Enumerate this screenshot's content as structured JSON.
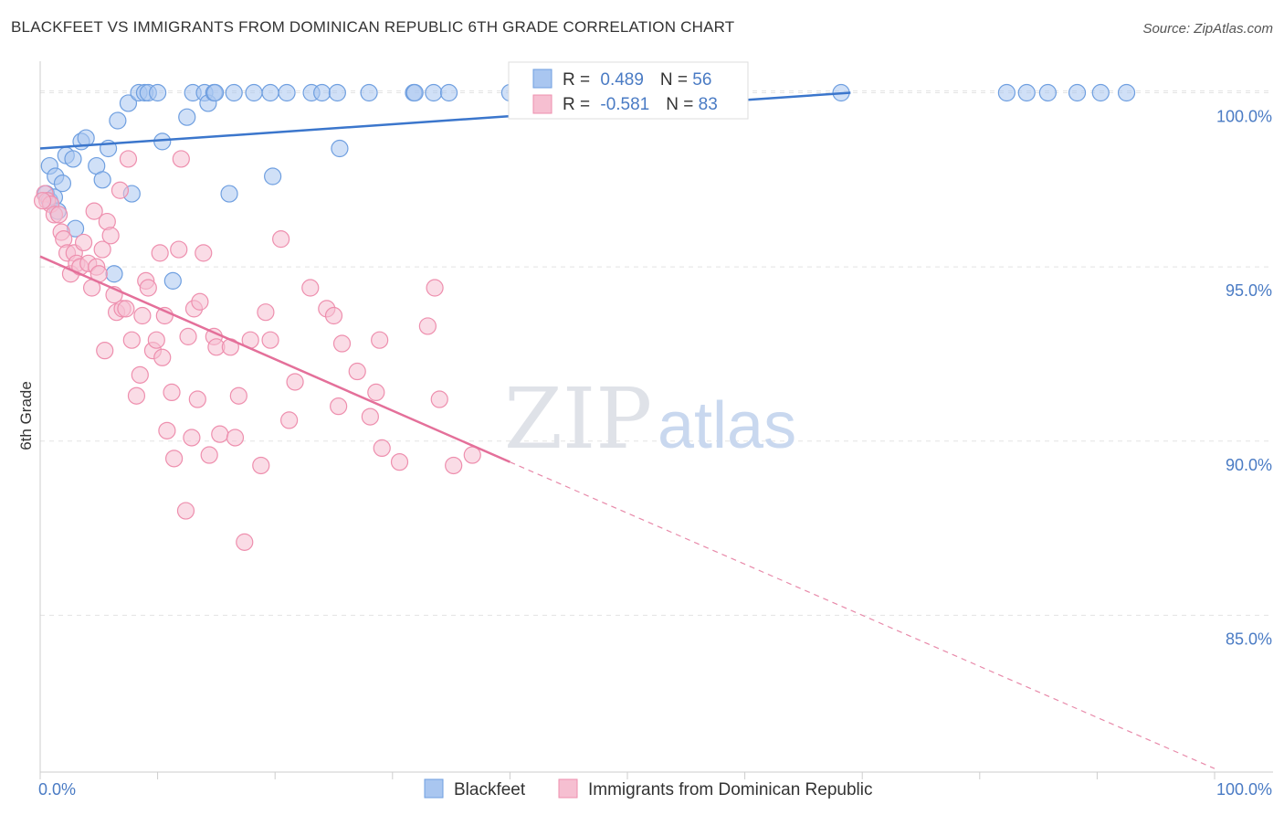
{
  "header": {
    "title": "BLACKFEET VS IMMIGRANTS FROM DOMINICAN REPUBLIC 6TH GRADE CORRELATION CHART",
    "source": "Source: ZipAtlas.com"
  },
  "watermark": {
    "zip": "ZIP",
    "atlas": "atlas"
  },
  "chart_data": {
    "type": "scatter",
    "title": "BLACKFEET VS IMMIGRANTS FROM DOMINICAN REPUBLIC 6TH GRADE CORRELATION CHART",
    "xlabel": "",
    "ylabel": "6th Grade",
    "xlim": [
      0,
      100
    ],
    "ylim": [
      80.5,
      100.8
    ],
    "x_tick_labels": [
      "0.0%",
      "100.0%"
    ],
    "y_ticks": [
      100,
      95,
      90,
      85
    ],
    "y_tick_labels": [
      "100.0%",
      "95.0%",
      "90.0%",
      "85.0%"
    ],
    "grid": true,
    "legend_position": "bottom",
    "stats": [
      {
        "r_label": "R = ",
        "r_value": "0.489",
        "n_label": "N = ",
        "n_value": "56"
      },
      {
        "r_label": "R = ",
        "r_value": "-0.581",
        "n_label": "N = ",
        "n_value": "83"
      }
    ],
    "series": [
      {
        "name": "Blackfeet",
        "color": "#6f9fe0",
        "fill": "#a9c6f0",
        "trend": {
          "x": [
            0,
            69
          ],
          "y": [
            98.4,
            100.0
          ],
          "style": "solid"
        },
        "points": [
          [
            0.5,
            97.1
          ],
          [
            0.8,
            96.9
          ],
          [
            0.8,
            97.9
          ],
          [
            1.2,
            97.0
          ],
          [
            1.3,
            97.6
          ],
          [
            1.5,
            96.6
          ],
          [
            1.9,
            97.4
          ],
          [
            2.2,
            98.2
          ],
          [
            2.8,
            98.1
          ],
          [
            3.0,
            96.1
          ],
          [
            3.5,
            98.6
          ],
          [
            3.9,
            98.7
          ],
          [
            4.8,
            97.9
          ],
          [
            5.3,
            97.5
          ],
          [
            5.8,
            98.4
          ],
          [
            6.3,
            94.8
          ],
          [
            6.6,
            99.2
          ],
          [
            7.5,
            99.7
          ],
          [
            7.8,
            97.1
          ],
          [
            8.4,
            100.0
          ],
          [
            8.9,
            100.0
          ],
          [
            9.2,
            100.0
          ],
          [
            10.0,
            100.0
          ],
          [
            10.4,
            98.6
          ],
          [
            11.3,
            94.6
          ],
          [
            12.5,
            99.3
          ],
          [
            13.0,
            100.0
          ],
          [
            14.0,
            100.0
          ],
          [
            14.3,
            99.7
          ],
          [
            14.8,
            100.0
          ],
          [
            14.9,
            100.0
          ],
          [
            16.1,
            97.1
          ],
          [
            16.5,
            100.0
          ],
          [
            18.2,
            100.0
          ],
          [
            19.6,
            100.0
          ],
          [
            19.8,
            97.6
          ],
          [
            21.0,
            100.0
          ],
          [
            23.1,
            100.0
          ],
          [
            24.0,
            100.0
          ],
          [
            25.3,
            100.0
          ],
          [
            25.5,
            98.4
          ],
          [
            28.0,
            100.0
          ],
          [
            31.8,
            100.0
          ],
          [
            31.9,
            100.0
          ],
          [
            33.5,
            100.0
          ],
          [
            34.8,
            100.0
          ],
          [
            40.0,
            100.0
          ],
          [
            44.0,
            100.0
          ],
          [
            45.9,
            100.0
          ],
          [
            68.2,
            100.0
          ],
          [
            82.3,
            100.0
          ],
          [
            84.0,
            100.0
          ],
          [
            85.8,
            100.0
          ],
          [
            88.3,
            100.0
          ],
          [
            90.3,
            100.0
          ],
          [
            92.5,
            100.0
          ]
        ]
      },
      {
        "name": "Immigrants from Dominican Republic",
        "color": "#ee8fae",
        "fill": "#f6bfd1",
        "trend": {
          "x": [
            0,
            40
          ],
          "y": [
            95.3,
            89.4
          ],
          "style": "solid"
        },
        "trend_extension": {
          "x": [
            40,
            100
          ],
          "y": [
            89.4,
            80.6
          ],
          "style": "dashed"
        },
        "points": [
          [
            0.4,
            97.1
          ],
          [
            0.6,
            96.9
          ],
          [
            0.9,
            96.8
          ],
          [
            1.2,
            96.5
          ],
          [
            1.6,
            96.5
          ],
          [
            1.8,
            96.0
          ],
          [
            2.0,
            95.8
          ],
          [
            2.3,
            95.4
          ],
          [
            2.6,
            94.8
          ],
          [
            2.9,
            95.4
          ],
          [
            3.1,
            95.1
          ],
          [
            3.4,
            95.0
          ],
          [
            3.7,
            95.7
          ],
          [
            4.1,
            95.1
          ],
          [
            4.4,
            94.4
          ],
          [
            4.6,
            96.6
          ],
          [
            4.8,
            95.0
          ],
          [
            5.0,
            94.8
          ],
          [
            5.3,
            95.5
          ],
          [
            5.5,
            92.6
          ],
          [
            5.7,
            96.3
          ],
          [
            6.0,
            95.9
          ],
          [
            6.3,
            94.2
          ],
          [
            6.5,
            93.7
          ],
          [
            6.8,
            97.2
          ],
          [
            7.0,
            93.8
          ],
          [
            7.3,
            93.8
          ],
          [
            7.5,
            98.1
          ],
          [
            7.8,
            92.9
          ],
          [
            8.2,
            91.3
          ],
          [
            8.5,
            91.9
          ],
          [
            8.7,
            93.6
          ],
          [
            9.0,
            94.6
          ],
          [
            9.2,
            94.4
          ],
          [
            9.6,
            92.6
          ],
          [
            9.9,
            92.9
          ],
          [
            10.2,
            95.4
          ],
          [
            10.4,
            92.4
          ],
          [
            10.6,
            93.6
          ],
          [
            10.8,
            90.3
          ],
          [
            11.2,
            91.4
          ],
          [
            11.4,
            89.5
          ],
          [
            11.8,
            95.5
          ],
          [
            12.0,
            98.1
          ],
          [
            12.4,
            88.0
          ],
          [
            12.6,
            93.0
          ],
          [
            12.9,
            90.1
          ],
          [
            13.1,
            93.8
          ],
          [
            13.4,
            91.2
          ],
          [
            13.6,
            94.0
          ],
          [
            13.9,
            95.4
          ],
          [
            14.4,
            89.6
          ],
          [
            14.8,
            93.0
          ],
          [
            15.0,
            92.7
          ],
          [
            15.3,
            90.2
          ],
          [
            16.2,
            92.7
          ],
          [
            16.6,
            90.1
          ],
          [
            16.9,
            91.3
          ],
          [
            17.4,
            87.1
          ],
          [
            17.9,
            92.9
          ],
          [
            18.8,
            89.3
          ],
          [
            19.2,
            93.7
          ],
          [
            19.6,
            92.9
          ],
          [
            20.5,
            95.8
          ],
          [
            21.2,
            90.6
          ],
          [
            21.7,
            91.7
          ],
          [
            23.0,
            94.4
          ],
          [
            24.4,
            93.8
          ],
          [
            25.0,
            93.6
          ],
          [
            25.4,
            91.0
          ],
          [
            25.7,
            92.8
          ],
          [
            27.0,
            92.0
          ],
          [
            28.1,
            90.7
          ],
          [
            28.6,
            91.4
          ],
          [
            28.9,
            92.9
          ],
          [
            29.1,
            89.8
          ],
          [
            30.6,
            89.4
          ],
          [
            33.0,
            93.3
          ],
          [
            33.6,
            94.4
          ],
          [
            34.0,
            91.2
          ],
          [
            35.2,
            89.3
          ],
          [
            36.8,
            89.6
          ],
          [
            0.2,
            96.9
          ]
        ]
      }
    ]
  }
}
